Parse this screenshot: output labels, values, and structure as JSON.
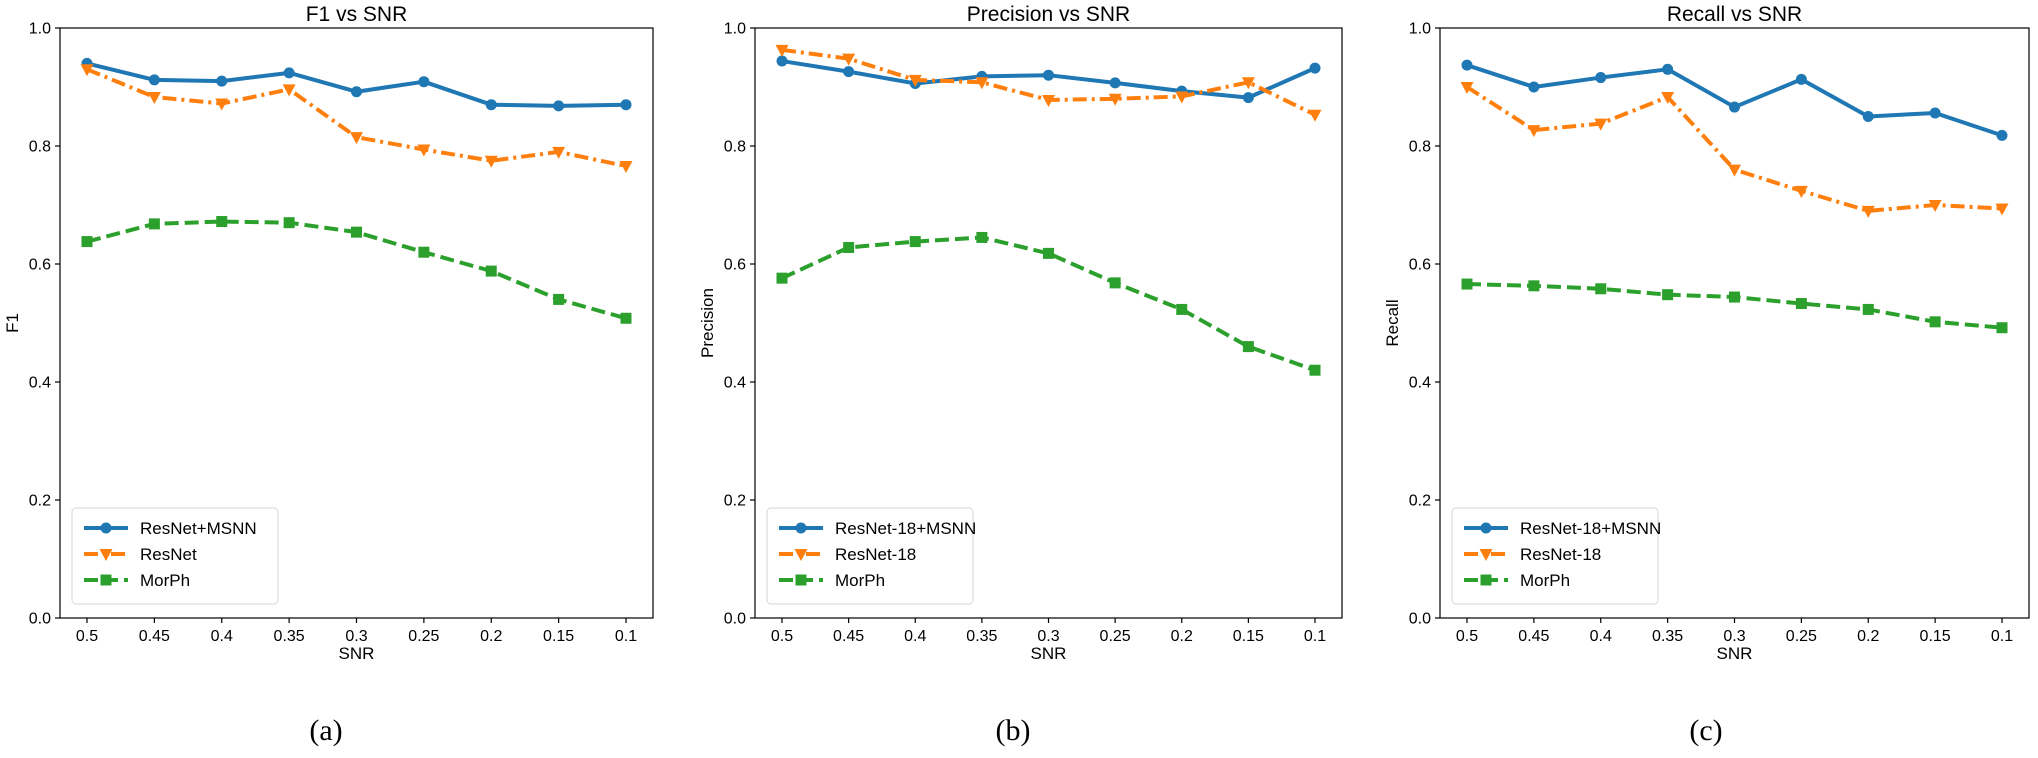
{
  "chart_data": [
    {
      "type": "line",
      "title": "F1 vs SNR",
      "xlabel": "SNR",
      "ylabel": "F1",
      "caption": "(a)",
      "categories": [
        "0.5",
        "0.45",
        "0.4",
        "0.35",
        "0.3",
        "0.25",
        "0.2",
        "0.15",
        "0.1"
      ],
      "ylim": [
        0,
        1
      ],
      "yticks": [
        "0.0",
        "0.2",
        "0.4",
        "0.6",
        "0.8",
        "1.0"
      ],
      "legend_position": "lower-left",
      "grid": false,
      "series": [
        {
          "name": "ResNet+MSNN",
          "color": "#1f77b4",
          "linestyle": "solid",
          "marker": "circle",
          "values": [
            0.94,
            0.912,
            0.91,
            0.924,
            0.892,
            0.909,
            0.87,
            0.868,
            0.87
          ]
        },
        {
          "name": "ResNet",
          "color": "#ff7f0e",
          "linestyle": "dashdot",
          "marker": "triangle-down",
          "values": [
            0.93,
            0.883,
            0.872,
            0.896,
            0.815,
            0.794,
            0.775,
            0.79,
            0.766
          ]
        },
        {
          "name": "MorPh",
          "color": "#2ca02c",
          "linestyle": "dashed",
          "marker": "square",
          "values": [
            0.638,
            0.668,
            0.672,
            0.67,
            0.654,
            0.62,
            0.588,
            0.54,
            0.508
          ]
        }
      ]
    },
    {
      "type": "line",
      "title": "Precision vs SNR",
      "xlabel": "SNR",
      "ylabel": "Precision",
      "caption": "(b)",
      "categories": [
        "0.5",
        "0.45",
        "0.4",
        "0.35",
        "0.3",
        "0.25",
        "0.2",
        "0.15",
        "0.1"
      ],
      "ylim": [
        0,
        1
      ],
      "yticks": [
        "0.0",
        "0.2",
        "0.4",
        "0.6",
        "0.8",
        "1.0"
      ],
      "legend_position": "lower-left",
      "grid": false,
      "series": [
        {
          "name": "ResNet-18+MSNN",
          "color": "#1f77b4",
          "linestyle": "solid",
          "marker": "circle",
          "values": [
            0.944,
            0.926,
            0.906,
            0.918,
            0.92,
            0.907,
            0.893,
            0.882,
            0.932
          ]
        },
        {
          "name": "ResNet-18",
          "color": "#ff7f0e",
          "linestyle": "dashdot",
          "marker": "triangle-down",
          "values": [
            0.963,
            0.948,
            0.912,
            0.908,
            0.878,
            0.88,
            0.884,
            0.908,
            0.853
          ]
        },
        {
          "name": "MorPh",
          "color": "#2ca02c",
          "linestyle": "dashed",
          "marker": "square",
          "values": [
            0.576,
            0.628,
            0.638,
            0.645,
            0.618,
            0.568,
            0.523,
            0.46,
            0.42
          ]
        }
      ]
    },
    {
      "type": "line",
      "title": "Recall vs SNR",
      "xlabel": "SNR",
      "ylabel": "Recall",
      "caption": "(c)",
      "categories": [
        "0.5",
        "0.45",
        "0.4",
        "0.35",
        "0.3",
        "0.25",
        "0.2",
        "0.15",
        "0.1"
      ],
      "ylim": [
        0,
        1
      ],
      "yticks": [
        "0.0",
        "0.2",
        "0.4",
        "0.6",
        "0.8",
        "1.0"
      ],
      "legend_position": "lower-left",
      "grid": false,
      "series": [
        {
          "name": "ResNet-18+MSNN",
          "color": "#1f77b4",
          "linestyle": "solid",
          "marker": "circle",
          "values": [
            0.937,
            0.9,
            0.916,
            0.93,
            0.866,
            0.913,
            0.85,
            0.856,
            0.818
          ]
        },
        {
          "name": "ResNet-18",
          "color": "#ff7f0e",
          "linestyle": "dashdot",
          "marker": "triangle-down",
          "values": [
            0.9,
            0.827,
            0.838,
            0.883,
            0.76,
            0.724,
            0.69,
            0.7,
            0.694
          ]
        },
        {
          "name": "MorPh",
          "color": "#2ca02c",
          "linestyle": "dashed",
          "marker": "square",
          "values": [
            0.566,
            0.563,
            0.558,
            0.548,
            0.544,
            0.533,
            0.523,
            0.502,
            0.492
          ]
        }
      ]
    }
  ]
}
